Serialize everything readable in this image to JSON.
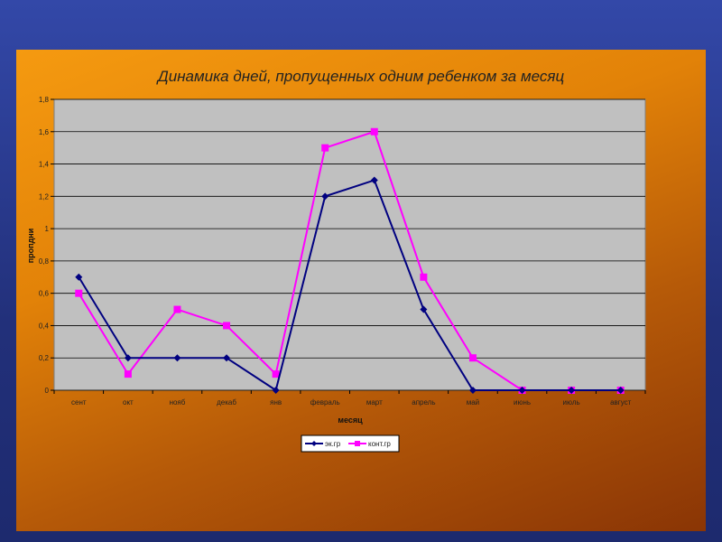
{
  "chart_data": {
    "type": "line",
    "title": "Динамика дней, пропущенных одним ребенком за месяц",
    "xlabel": "месяц",
    "ylabel": "пропдни",
    "categories": [
      "сент",
      "окт",
      "нояб",
      "декаб",
      "янв",
      "февраль",
      "март",
      "апрель",
      "май",
      "июнь",
      "июль",
      "август"
    ],
    "ylim": [
      0,
      1.8
    ],
    "yticks": [
      "0",
      "0,2",
      "0,4",
      "0,6",
      "0,8",
      "1",
      "1,2",
      "1,4",
      "1,6",
      "1,8"
    ],
    "grid": true,
    "legend": "bottom",
    "series": [
      {
        "name": "эк.гр",
        "color": "#000080",
        "marker": "diamond",
        "values": [
          0.7,
          0.2,
          0.2,
          0.2,
          0,
          1.2,
          1.3,
          0.5,
          0,
          0,
          0,
          0
        ]
      },
      {
        "name": "конт.гр",
        "color": "#ff00ff",
        "marker": "square",
        "values": [
          0.6,
          0.1,
          0.5,
          0.4,
          0.1,
          1.5,
          1.6,
          0.7,
          0.2,
          0,
          0,
          0
        ]
      }
    ]
  }
}
